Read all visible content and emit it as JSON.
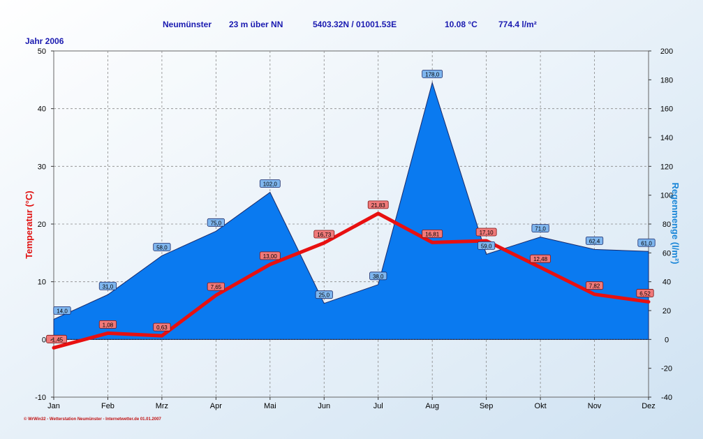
{
  "header": {
    "station": "Neumünster",
    "elevation": "23 m über NN",
    "coords": "5403.32N / 01001.53E",
    "avg_temp": "10.08 °C",
    "total_rain": "774.4 l/m²"
  },
  "year_label": "Jahr  2006",
  "footer": "© WrWin32  -  Wetterstation Neumünster  -  Internetwetter.de  01.01.2007",
  "colors": {
    "temperature": "#e81010",
    "rain_fill": "#0a7af0",
    "rain_stroke": "#1a2a6a",
    "header_text": "#1a1ab0",
    "temp_axis_title": "#e01010",
    "rain_axis_title": "#1a86d8"
  },
  "chart_data": {
    "type": "area",
    "categories": [
      "Jan",
      "Feb",
      "Mrz",
      "Apr",
      "Mai",
      "Jun",
      "Jul",
      "Aug",
      "Sep",
      "Okt",
      "Nov",
      "Dez"
    ],
    "series": [
      {
        "name": "Regenmenge",
        "type": "area",
        "axis": "right",
        "values": [
          14.0,
          31.0,
          58.0,
          75.0,
          102.0,
          25.0,
          38.0,
          178.0,
          59.0,
          71.0,
          62.4,
          61.0
        ],
        "labels": [
          "14,0",
          "31,0",
          "58,0",
          "75,0",
          "102,0",
          "25,0",
          "38,0",
          "178,0",
          "59,0",
          "71,0",
          "62,4",
          "61,0"
        ]
      },
      {
        "name": "Temperatur",
        "type": "line",
        "axis": "left",
        "values": [
          -1.45,
          1.08,
          0.63,
          7.65,
          13.0,
          16.73,
          21.83,
          16.81,
          17.1,
          12.48,
          7.82,
          6.52
        ],
        "labels": [
          "-1,45",
          "1,08",
          "0,63",
          "7,65",
          "13,00",
          "16,73",
          "21,83",
          "16,81",
          "17,10",
          "12,48",
          "7,82",
          "6,52"
        ]
      }
    ],
    "ylabel_left": "Temperatur  (°C)",
    "ylabel_right": "Regenmenge   (l/m²)",
    "ylim_left": [
      -10,
      50
    ],
    "ylim_right": [
      -40,
      200
    ],
    "yticks_left": [
      -10,
      0,
      10,
      20,
      30,
      40,
      50
    ],
    "yticks_right": [
      -40,
      -20,
      0,
      20,
      40,
      60,
      80,
      100,
      120,
      140,
      160,
      180,
      200
    ],
    "grid": true,
    "legend": "none"
  }
}
